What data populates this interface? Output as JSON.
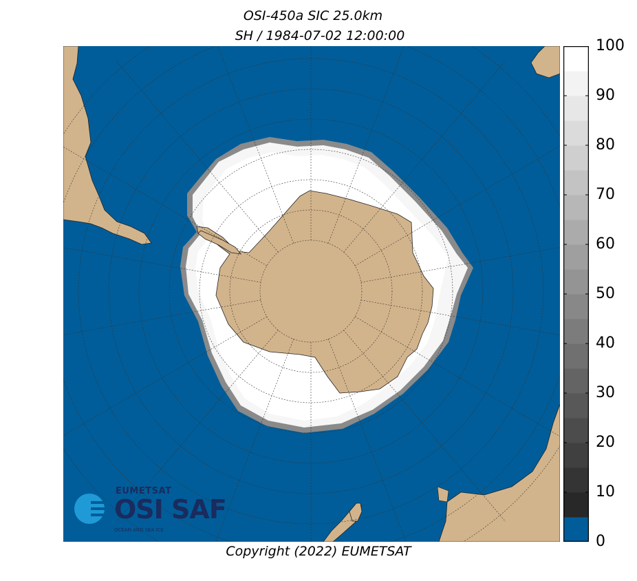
{
  "title_line1": "OSI-450a SIC 25.0km",
  "title_line2": "SH / 1984-07-02 12:00:00",
  "copyright": "Copyright (2022)  EUMETSAT",
  "logo": {
    "organization": "EUMETSAT",
    "name": "OSI SAF",
    "subtitle": "OCEAN AND SEA ICE"
  },
  "colorbar": {
    "ticks": [
      "100",
      "90",
      "80",
      "70",
      "60",
      "50",
      "40",
      "30",
      "20",
      "10",
      "0"
    ],
    "min": 0,
    "max": 100
  },
  "colors": {
    "ocean": "#005d99",
    "land": "#d2b48c",
    "ice": "#ffffff"
  }
}
